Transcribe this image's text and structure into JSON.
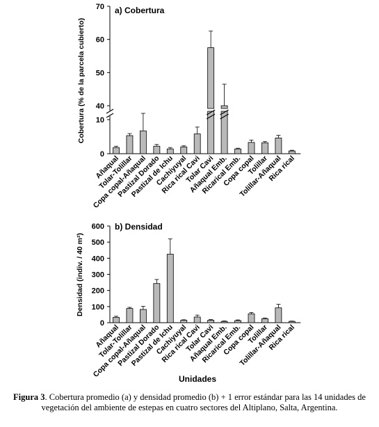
{
  "categories": [
    "Añaqual",
    "Tolar-Tolillar",
    "Copa copal-Añaqual",
    "Pastizal Dorado",
    "Pastizal de Ichu",
    "Cachiyuyal",
    "Rica rical Cavi",
    "Tolar Cavi",
    "Añaqual Emb.",
    "Ricarical Emb.",
    "Copa copal",
    "Tolillar",
    "Tolillar-Añaqual",
    "Rica rical"
  ],
  "chart_data": [
    {
      "type": "bar",
      "title": "a) Cobertura",
      "xlabel": "",
      "ylabel": "Cobertura (% de la parcela cubierto)",
      "axis_break": [
        10,
        40
      ],
      "ylim": [
        0,
        70
      ],
      "yticks": [
        0,
        10,
        40,
        50,
        60,
        70
      ],
      "categories": [
        "Añaqual",
        "Tolar-Tolillar",
        "Copa copal-Añaqual",
        "Pastizal Dorado",
        "Pastizal de Ichu",
        "Cachiyuyal",
        "Rica rical Cavi",
        "Tolar Cavi",
        "Añaqual Emb.",
        "Ricarical Emb.",
        "Copa copal",
        "Tolillar",
        "Tolillar-Añaqual",
        "Rica rical"
      ],
      "values": [
        1.8,
        5.3,
        6.7,
        2.2,
        1.4,
        2.0,
        5.8,
        57.5,
        40.0,
        1.4,
        3.3,
        3.2,
        4.6,
        0.8
      ],
      "errors": [
        0.4,
        0.6,
        3.7,
        0.5,
        0.4,
        0.3,
        2.0,
        5.0,
        6.5,
        0.2,
        0.7,
        0.4,
        0.8,
        0.2
      ]
    },
    {
      "type": "bar",
      "title": "b) Densidad",
      "xlabel": "Unidades",
      "ylabel": "Densidad (indiv. / 40 m²)",
      "ylim": [
        0,
        600
      ],
      "yticks": [
        0,
        100,
        200,
        300,
        400,
        500,
        600
      ],
      "categories": [
        "Añaqual",
        "Tolar-Tolillar",
        "Copa copal-Añaqual",
        "Pastizal Dorado",
        "Pastizal de Ichu",
        "Cachiyuyal",
        "Rica rical Cavi",
        "Tolar Cavi",
        "Añaqual Emb.",
        "Ricarical Emb.",
        "Copa copal",
        "Tolillar",
        "Tolillar-Añaqual",
        "Rica rical"
      ],
      "values": [
        33,
        88,
        82,
        243,
        425,
        15,
        35,
        15,
        8,
        13,
        55,
        25,
        92,
        8
      ],
      "errors": [
        7,
        7,
        20,
        25,
        95,
        3,
        12,
        4,
        3,
        4,
        8,
        4,
        22,
        2
      ]
    }
  ],
  "caption": {
    "label": "Figura 3",
    "text": ". Cobertura promedio (a) y densidad promedio (b) + 1 error estándar para las 14 unidades de vegetación del ambiente de estepas en cuatro sectores del Altiplano, Salta, Argentina."
  }
}
